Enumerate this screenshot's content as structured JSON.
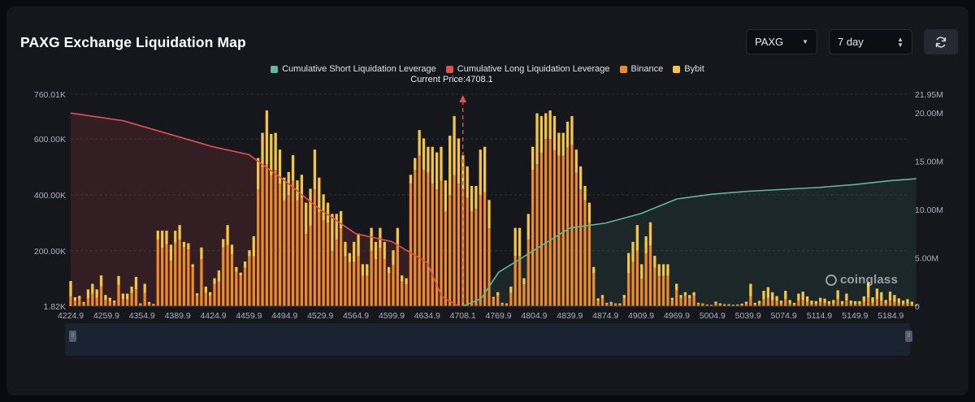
{
  "header": {
    "title": "PAXG Exchange Liquidation Map",
    "symbol_select": "PAXG",
    "range_select": "7 day"
  },
  "legend": {
    "items": [
      {
        "label": "Cumulative Short Liquidation Leverage",
        "color": "#5fb7a0"
      },
      {
        "label": "Cumulative Long Liquidation Leverage",
        "color": "#e0514f"
      },
      {
        "label": "Binance",
        "color": "#ef8a2a"
      },
      {
        "label": "Bybit",
        "color": "#f4c542"
      }
    ]
  },
  "current_price_label": "Current Price:4708.1",
  "watermark": "coinglass",
  "chart_data": {
    "type": "bar",
    "current_price": 4708.1,
    "x_ticks": [
      "4224.9",
      "4259.9",
      "4354.9",
      "4389.9",
      "4424.9",
      "4459.9",
      "4494.9",
      "4529.9",
      "4564.9",
      "4599.9",
      "4634.9",
      "4708.1",
      "4769.9",
      "4804.9",
      "4839.9",
      "4874.9",
      "4909.9",
      "4969.9",
      "5004.9",
      "5039.9",
      "5074.9",
      "5114.9",
      "5149.9",
      "5184.9"
    ],
    "y_left": {
      "ticks": [
        "1.82K",
        "200.00K",
        "400.00K",
        "600.00K",
        "760.01K"
      ],
      "range": [
        1820,
        760010
      ]
    },
    "y_right": {
      "ticks": [
        "0",
        "5.00M",
        "10.00M",
        "15.00M",
        "20.00M",
        "21.95M"
      ],
      "range": [
        0,
        21950000
      ]
    },
    "series": [
      {
        "name": "Binance",
        "color": "#ef8a2a",
        "values": [
          35000,
          20000,
          25000,
          10000,
          28000,
          44000,
          30000,
          70000,
          22000,
          18000,
          12000,
          76000,
          26000,
          25000,
          46000,
          60000,
          5000,
          48000,
          8000,
          4000,
          238000,
          208000,
          222000,
          163000,
          228000,
          238000,
          212000,
          203000,
          140000,
          38000,
          168000,
          48000,
          38000,
          80000,
          88000,
          210000,
          218000,
          186000,
          123000,
          110000,
          138000,
          178000,
          178000,
          418000,
          498000,
          508000,
          468000,
          488000,
          438000,
          378000,
          398000,
          448000,
          378000,
          388000,
          258000,
          288000,
          418000,
          338000,
          308000,
          298000,
          198000,
          238000,
          278000,
          178000,
          158000,
          158000,
          178000,
          108000,
          108000,
          198000,
          168000,
          208000,
          168000,
          118000,
          148000,
          218000,
          88000,
          78000,
          438000,
          488000,
          538000,
          488000,
          478000,
          438000,
          418000,
          448000,
          338000,
          398000,
          468000,
          438000,
          418000,
          388000,
          338000,
          348000,
          398000,
          408000,
          278000,
          28000,
          38000,
          8000,
          7000,
          48000,
          178000,
          178000,
          78000,
          238000,
          488000,
          508000,
          548000,
          598000,
          598000,
          558000,
          538000,
          538000,
          568000,
          578000,
          478000,
          418000,
          378000,
          298000,
          118000,
          18000,
          28000,
          8000,
          10000,
          8000,
          6000,
          28000,
          118000,
          158000,
          198000,
          98000,
          188000,
          218000,
          138000,
          108000,
          108000,
          108000,
          22000,
          58000,
          28000,
          38000,
          28000,
          38000,
          8000,
          8000,
          4000,
          4000,
          10000,
          5000,
          4000,
          4000,
          3000,
          3000,
          4000,
          8000,
          35000,
          6000,
          9000,
          25000,
          30000,
          22000,
          18000,
          10000,
          25000,
          10000,
          6000,
          20000,
          22000,
          15000,
          8000,
          8000,
          15000,
          12000,
          8000,
          10000,
          25000,
          8000,
          20000,
          10000,
          8000,
          8000,
          15000,
          30000,
          12000,
          25000,
          20000,
          10000,
          20000,
          15000,
          10000,
          8000,
          10000,
          6000,
          2000
        ]
      },
      {
        "name": "Bybit",
        "color": "#f4c542",
        "values": [
          55000,
          12000,
          12000,
          5000,
          32000,
          36000,
          30000,
          40000,
          18000,
          12000,
          8000,
          32000,
          19000,
          20000,
          24000,
          45000,
          5000,
          32000,
          7000,
          4000,
          32000,
          62000,
          48000,
          57000,
          42000,
          52000,
          18000,
          22000,
          10000,
          8000,
          42000,
          22000,
          12000,
          20000,
          40000,
          30000,
          72000,
          34000,
          17000,
          10000,
          22000,
          22000,
          72000,
          112000,
          122000,
          192000,
          148000,
          132000,
          122000,
          82000,
          82000,
          92000,
          72000,
          82000,
          112000,
          132000,
          142000,
          122000,
          92000,
          72000,
          132000,
          92000,
          62000,
          52000,
          32000,
          72000,
          82000,
          42000,
          42000,
          82000,
          62000,
          72000,
          62000,
          22000,
          52000,
          62000,
          22000,
          22000,
          32000,
          42000,
          92000,
          112000,
          92000,
          132000,
          132000,
          122000,
          112000,
          212000,
          212000,
          162000,
          122000,
          112000,
          92000,
          82000,
          162000,
          162000,
          102000,
          5000,
          12000,
          4000,
          3000,
          22000,
          102000,
          102000,
          22000,
          92000,
          82000,
          182000,
          132000,
          92000,
          102000,
          122000,
          82000,
          82000,
          92000,
          102000,
          82000,
          82000,
          52000,
          72000,
          22000,
          10000,
          12000,
          4000,
          5000,
          2000,
          4000,
          12000,
          72000,
          72000,
          92000,
          52000,
          62000,
          82000,
          42000,
          42000,
          42000,
          42000,
          8000,
          22000,
          12000,
          12000,
          12000,
          12000,
          4000,
          2000,
          2000,
          1000,
          6000,
          5000,
          3000,
          3000,
          2000,
          3000,
          5000,
          8000,
          45000,
          6000,
          10000,
          30000,
          38000,
          28000,
          18000,
          10000,
          30000,
          12000,
          6000,
          25000,
          30000,
          20000,
          12000,
          10000,
          15000,
          15000,
          10000,
          12000,
          32000,
          10000,
          25000,
          10000,
          10000,
          10000,
          20000,
          55000,
          20000,
          38000,
          30000,
          12000,
          32000,
          25000,
          18000,
          12000,
          15000,
          10000,
          3000
        ]
      },
      {
        "name": "Cumulative Long Liquidation Leverage",
        "color": "#e0514f",
        "x": [
          4224.9,
          4304.9,
          4424.9,
          4459.9,
          4494.9,
          4529.9,
          4564.9,
          4599.9,
          4634.9,
          4664.9,
          4700.0
        ],
        "values": [
          20000000,
          19200000,
          16500000,
          15700000,
          13000000,
          10000000,
          7500000,
          6700000,
          4500000,
          1000000,
          0
        ]
      },
      {
        "name": "Cumulative Short Liquidation Leverage",
        "color": "#5fb7a0",
        "x": [
          4708.1,
          4740.0,
          4769.9,
          4804.9,
          4839.9,
          4874.9,
          4909.9,
          4969.9,
          5004.9,
          5039.9,
          5074.9,
          5114.9,
          5149.9,
          5184.9,
          5210.0
        ],
        "values": [
          0,
          800000,
          3500000,
          5800000,
          8100000,
          8600000,
          9600000,
          11100000,
          11600000,
          11900000,
          12100000,
          12300000,
          12600000,
          13000000,
          13200000
        ]
      }
    ]
  }
}
